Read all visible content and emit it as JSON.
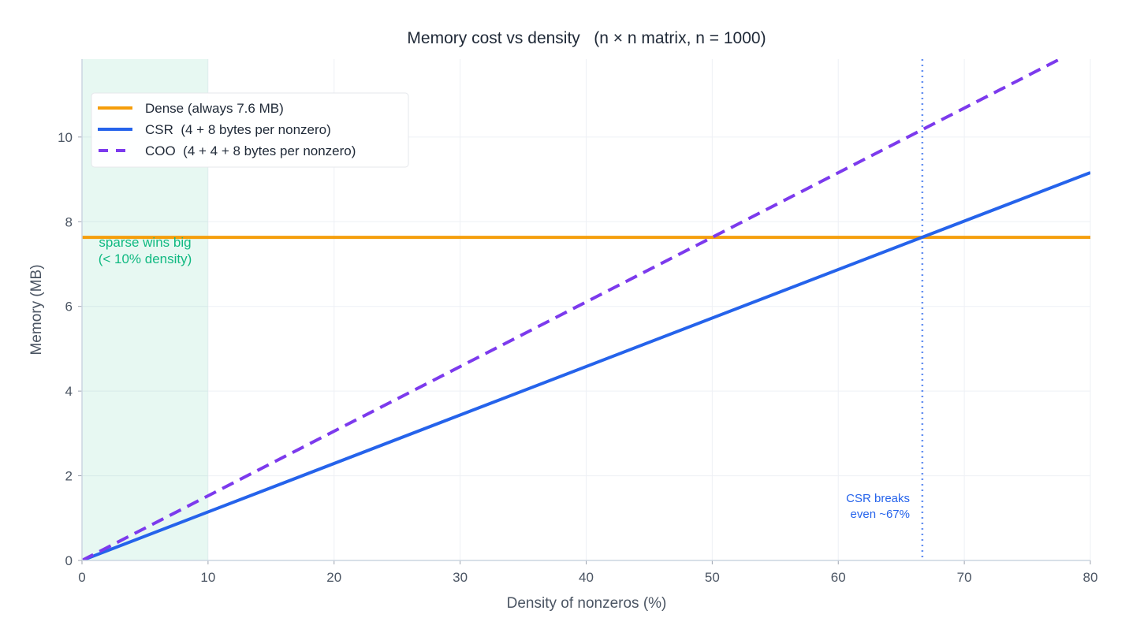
{
  "chart_data": {
    "type": "line",
    "title": "Memory cost vs density   (n × n matrix, n = 1000)",
    "xlabel": "Density of nonzeros (%)",
    "ylabel": "Memory (MB)",
    "xlim": [
      0,
      80
    ],
    "ylim": [
      0,
      11.84
    ],
    "xticks": [
      0,
      10,
      20,
      30,
      40,
      50,
      60,
      70,
      80
    ],
    "yticks": [
      0,
      2,
      4,
      6,
      8,
      10
    ],
    "grid": true,
    "legend_position": "top-left",
    "x": [
      0,
      80
    ],
    "series": [
      {
        "name": "Dense (always 7.6 MB)",
        "values": [
          7.63,
          7.63
        ],
        "color": "#f59e0b",
        "style": "solid"
      },
      {
        "name": "CSR  (4 + 8 bytes per nonzero)",
        "values": [
          0,
          9.16
        ],
        "color": "#2563eb",
        "style": "solid"
      },
      {
        "name": "COO  (4 + 4 + 8 bytes per nonzero)",
        "values": [
          0,
          12.21
        ],
        "color": "#7c3aed",
        "style": "dashed"
      }
    ],
    "shaded_region": {
      "x": [
        0,
        10
      ],
      "color": "#10b981",
      "label_lines": [
        "sparse wins big",
        "(< 10% density)"
      ]
    },
    "vline": {
      "x": 66.67,
      "color": "#2563eb",
      "style": "dotted",
      "label_lines": [
        "CSR breaks",
        "even ~67%"
      ]
    }
  }
}
